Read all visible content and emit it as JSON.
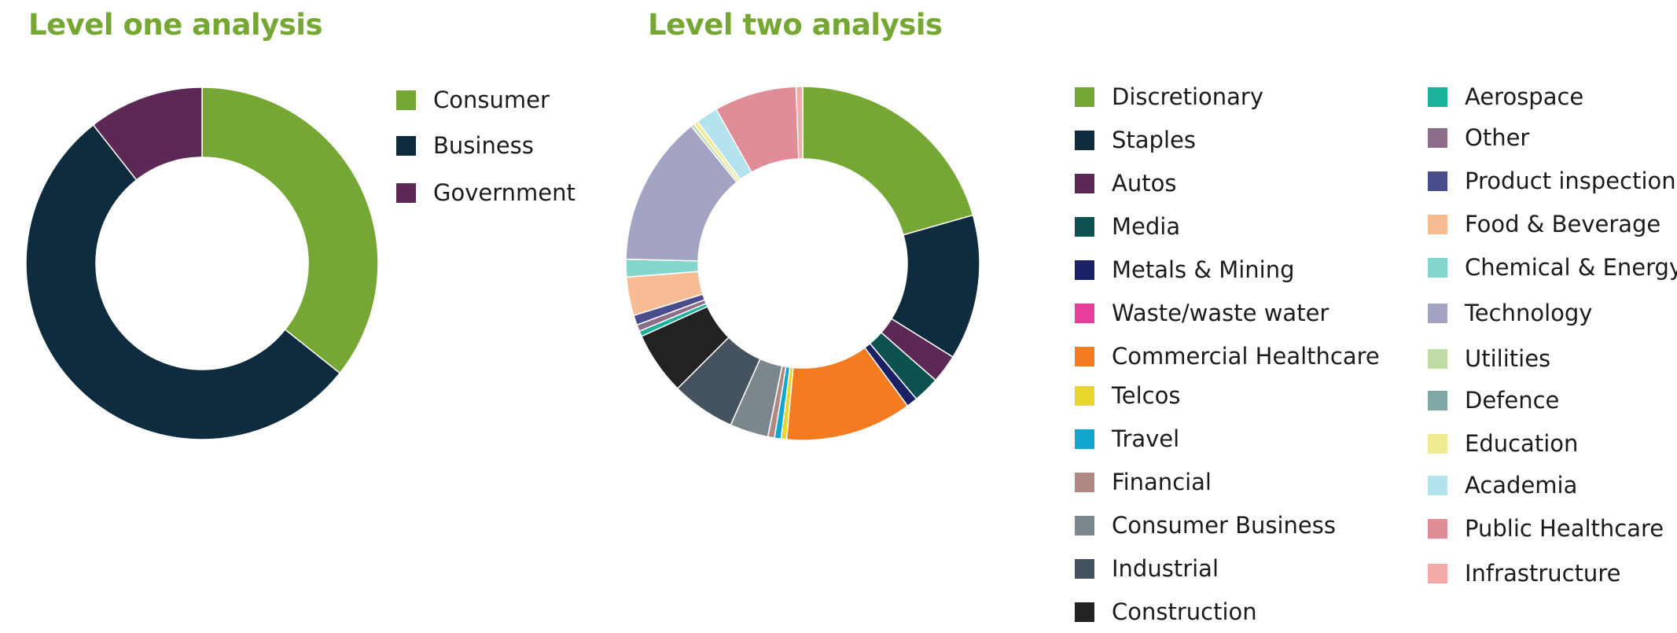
{
  "chart_data": [
    {
      "type": "pie",
      "title": "Level one analysis",
      "categories": [
        "Consumer",
        "Business",
        "Government"
      ],
      "values": [
        35.7,
        53.7,
        10.6
      ],
      "colors": [
        "#76a734",
        "#0e2c3d",
        "#5c2856"
      ]
    },
    {
      "type": "pie",
      "title": "Level two analysis",
      "categories": [
        "Discretionary",
        "Staples",
        "Autos",
        "Media",
        "Metals & Mining",
        "Waste/waste water",
        "Commercial Healthcare",
        "Telcos",
        "Travel",
        "Financial",
        "Consumer Business",
        "Industrial",
        "Construction",
        "Aerospace",
        "Other",
        "Product inspection",
        "Food & Beverage",
        "Chemical & Energy",
        "Technology",
        "Utilities",
        "Defence",
        "Education",
        "Academia",
        "Public Healthcare",
        "Infrastructure"
      ],
      "values": [
        20.5,
        13.2,
        2.6,
        2.4,
        1.0,
        0.0,
        11.5,
        0.5,
        0.6,
        0.6,
        3.5,
        5.8,
        5.7,
        0.5,
        0.6,
        0.9,
        3.5,
        1.6,
        13.7,
        0.3,
        0.0,
        0.4,
        2.0,
        7.5,
        0.6
      ],
      "colors": [
        "#76a734",
        "#0e2c3d",
        "#5c2856",
        "#0d5150",
        "#1a1f66",
        "#e8409a",
        "#f47b20",
        "#e8d62e",
        "#11a6d0",
        "#b08a82",
        "#7c868d",
        "#455361",
        "#222222",
        "#1bb19b",
        "#8c6e8c",
        "#4a4d8c",
        "#f7bc94",
        "#83d6cb",
        "#a3a4c4",
        "#bfdba6",
        "#7ea7a5",
        "#f0ea92",
        "#b4e3ee",
        "#e08d98",
        "#f4aaa6"
      ]
    }
  ]
}
